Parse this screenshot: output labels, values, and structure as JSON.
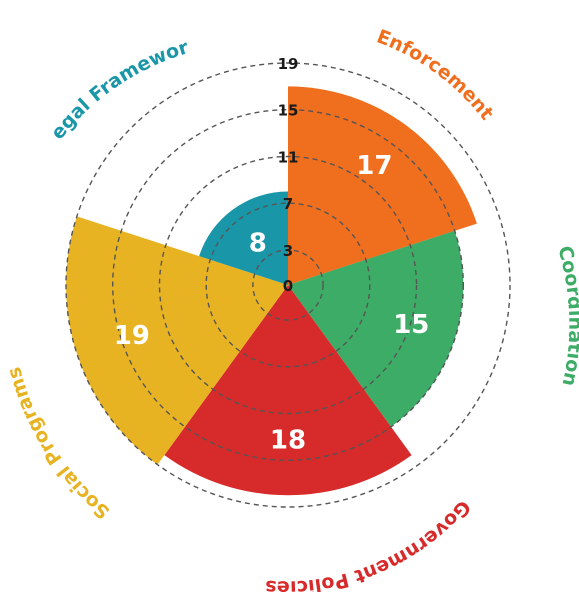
{
  "chart_data": {
    "type": "polar_area",
    "title": "",
    "categories": [
      "Enforcement",
      "Coordination",
      "Government Policies",
      "Social Programs",
      "Legal Framework"
    ],
    "values": [
      17,
      15,
      18,
      19,
      8
    ],
    "colors": [
      "#ef6f1f",
      "#3dac66",
      "#d62a2b",
      "#e8b322",
      "#1996a8"
    ],
    "label_colors": [
      "#ef6f1f",
      "#3dac66",
      "#d62a2b",
      "#e8b322",
      "#1996a8"
    ],
    "radial_ticks": [
      "0",
      "3",
      "7",
      "11",
      "15",
      "19"
    ],
    "rlim": [
      0,
      19
    ],
    "grid": true
  }
}
